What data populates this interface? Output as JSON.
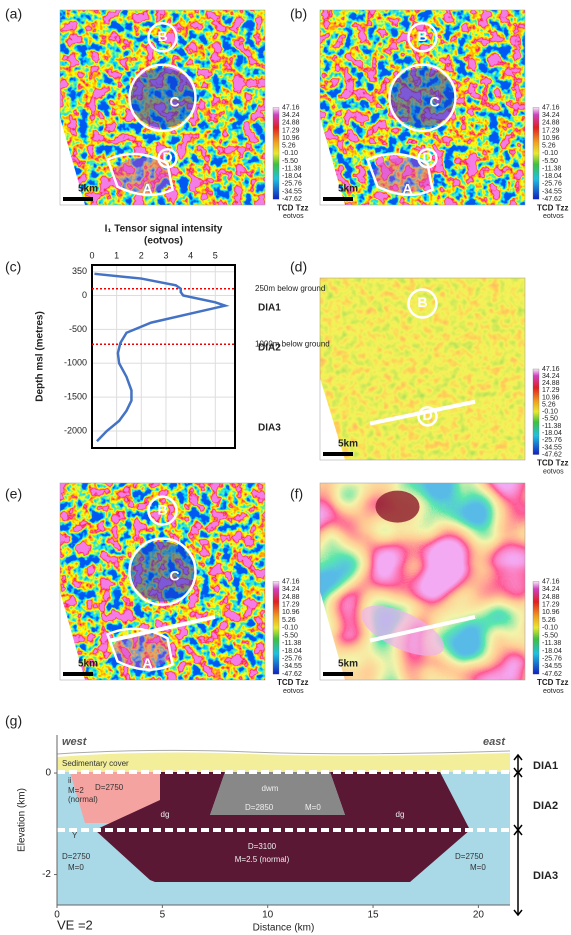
{
  "panel_labels": [
    "(a)",
    "(b)",
    "(c)",
    "(d)",
    "(e)",
    "(f)",
    "(g)"
  ],
  "map_labels": [
    "B",
    "C",
    "D",
    "A"
  ],
  "scale_bar": "5km",
  "colorbar": {
    "ticks": [
      "47.16",
      "34.24",
      "24.88",
      "17.29",
      "10.96",
      "5.26",
      "-0.10",
      "-5.50",
      "-11.38",
      "-18.04",
      "-25.76",
      "-34.55",
      "-47.62"
    ],
    "title": "TCD Tzz",
    "unit": "eotvos"
  },
  "chart_data": [
    {
      "type": "line",
      "title": "I₁ Tensor signal intensity",
      "subtitle": "(eotvos)",
      "y_label": "Depth msl (metres)",
      "y": [
        320,
        250,
        150,
        100,
        50,
        0,
        -100,
        -150,
        -250,
        -400,
        -550,
        -700,
        -850,
        -1000,
        -1200,
        -1400,
        -1550,
        -1700,
        -1850,
        -2000,
        -2150
      ],
      "values": [
        0.1,
        2.0,
        3.4,
        3.6,
        3.6,
        3.7,
        5.0,
        5.4,
        4.2,
        2.4,
        1.4,
        1.15,
        1.05,
        1.1,
        1.4,
        1.6,
        1.6,
        1.4,
        1.1,
        0.6,
        0.2
      ],
      "color": "#4472c4",
      "xlim": [
        0,
        5.8
      ],
      "xticks": [
        0,
        1,
        2,
        3,
        4,
        5
      ],
      "ylim": [
        -2250,
        450
      ],
      "yticks": [
        350,
        0,
        -500,
        -1000,
        -1500,
        -2000
      ],
      "grid": true,
      "ref_lines": [
        {
          "value": 100,
          "label": "250m below ground"
        },
        {
          "value": -720,
          "label": "1000m below ground"
        }
      ],
      "zones": [
        "DIA1",
        "DIA2",
        "DIA3"
      ]
    },
    {
      "type": "section",
      "x_label": "Distance (km)",
      "y_label": "Elevation (km)",
      "xlim": [
        0,
        21.5
      ],
      "xticks": [
        0,
        5,
        10,
        15,
        20
      ],
      "ylim": [
        -2.6,
        0.75
      ],
      "yticks": [
        0,
        -2
      ],
      "west": "west",
      "east": "east",
      "zones": [
        "DIA1",
        "DIA2",
        "DIA3"
      ],
      "note": "VE =2",
      "units": [
        "Sedimentary cover",
        "ii",
        "D=2750",
        "M=2",
        "(normal)",
        "dwm",
        "D=2850",
        "M=0",
        "dg",
        "dg",
        "D=3100",
        "M=2.5 (normal)",
        "Y",
        "D=2750",
        "M=0",
        "D=2750",
        "M=0"
      ]
    }
  ]
}
